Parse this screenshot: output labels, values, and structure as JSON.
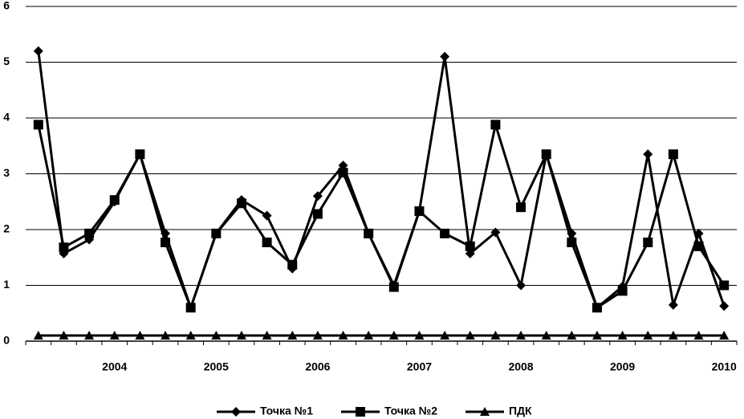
{
  "chart_data": {
    "type": "line",
    "categories": [
      null,
      null,
      null,
      "2004",
      null,
      null,
      null,
      "2005",
      null,
      null,
      null,
      "2006",
      null,
      null,
      null,
      "2007",
      null,
      null,
      null,
      "2008",
      null,
      null,
      null,
      "2009",
      null,
      null,
      null,
      "2010"
    ],
    "series": [
      {
        "name": "Точка №1",
        "color": "#000000",
        "marker": "diamond",
        "values": [
          5.2,
          1.57,
          1.82,
          2.5,
          3.35,
          1.93,
          0.6,
          1.93,
          2.53,
          2.25,
          1.3,
          2.6,
          3.15,
          1.93,
          1.0,
          2.33,
          5.1,
          1.57,
          1.95,
          1.0,
          3.35,
          1.93,
          0.6,
          0.98,
          3.35,
          0.65,
          1.93,
          0.63
        ]
      },
      {
        "name": "Точка №2",
        "color": "#000000",
        "marker": "square",
        "values": [
          3.88,
          1.68,
          1.93,
          2.53,
          3.35,
          1.77,
          0.6,
          1.93,
          2.47,
          1.77,
          1.37,
          2.28,
          3.02,
          1.93,
          0.97,
          2.33,
          1.93,
          1.7,
          3.88,
          2.4,
          3.35,
          1.77,
          0.6,
          0.9,
          1.77,
          3.35,
          1.7,
          1.0
        ]
      },
      {
        "name": "ПДК",
        "color": "#000000",
        "marker": "triangle",
        "values": [
          0.1,
          0.1,
          0.1,
          0.1,
          0.1,
          0.1,
          0.1,
          0.1,
          0.1,
          0.1,
          0.1,
          0.1,
          0.1,
          0.1,
          0.1,
          0.1,
          0.1,
          0.1,
          0.1,
          0.1,
          0.1,
          0.1,
          0.1,
          0.1,
          0.1,
          0.1,
          0.1,
          0.1
        ]
      }
    ],
    "ylim": [
      0,
      6
    ],
    "yticks": [
      0,
      1,
      2,
      3,
      4,
      5,
      6
    ],
    "grid": true,
    "legend": "bottom"
  }
}
